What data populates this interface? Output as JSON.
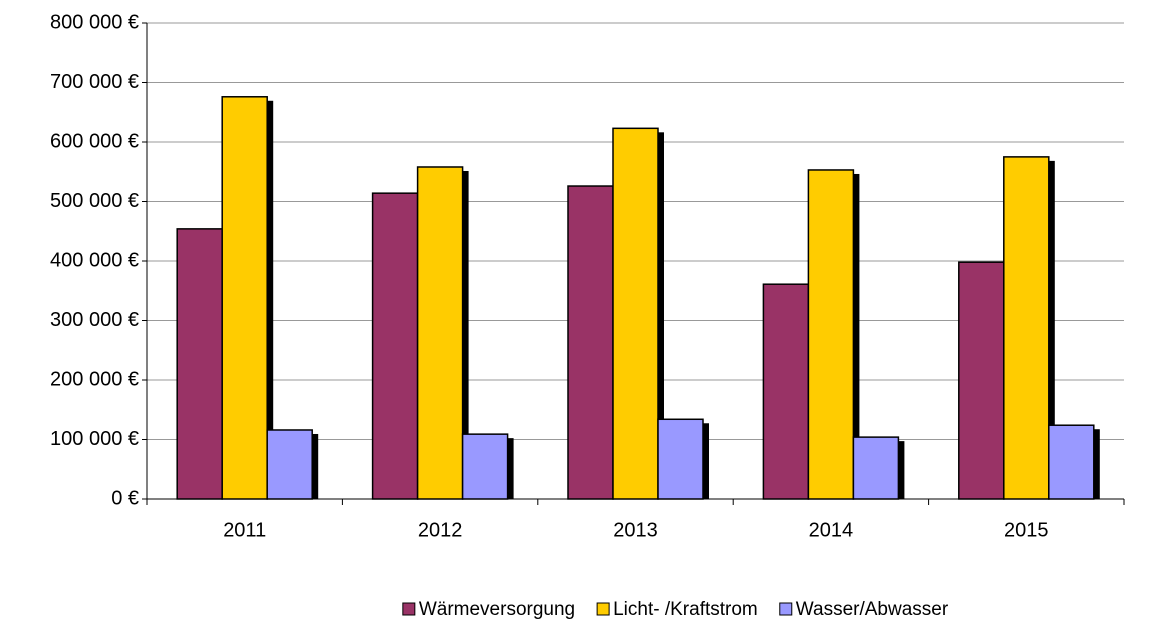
{
  "chart_data": {
    "type": "bar",
    "categories": [
      "2011",
      "2012",
      "2013",
      "2014",
      "2015"
    ],
    "series": [
      {
        "name": "Wärmeversorgung",
        "color": "#993366",
        "values": [
          454000,
          514000,
          526000,
          361000,
          398000
        ]
      },
      {
        "name": "Licht- /Kraftstrom",
        "color": "#ffcc00",
        "values": [
          676000,
          558000,
          623000,
          553000,
          575000
        ]
      },
      {
        "name": "Wasser/Abwasser",
        "color": "#9999ff",
        "values": [
          116000,
          109000,
          134000,
          104000,
          124000
        ]
      }
    ],
    "ylim": [
      0,
      800000
    ],
    "yticks": [
      {
        "value": 0,
        "label": "0 €"
      },
      {
        "value": 100000,
        "label": "100 000 €"
      },
      {
        "value": 200000,
        "label": "200 000 €"
      },
      {
        "value": 300000,
        "label": "300 000 €"
      },
      {
        "value": 400000,
        "label": "400 000 €"
      },
      {
        "value": 500000,
        "label": "500 000 €"
      },
      {
        "value": 600000,
        "label": "600 000 €"
      },
      {
        "value": 700000,
        "label": "700 000 €"
      },
      {
        "value": 800000,
        "label": "800 000 €"
      }
    ],
    "grid": true,
    "legend": "bottom"
  }
}
